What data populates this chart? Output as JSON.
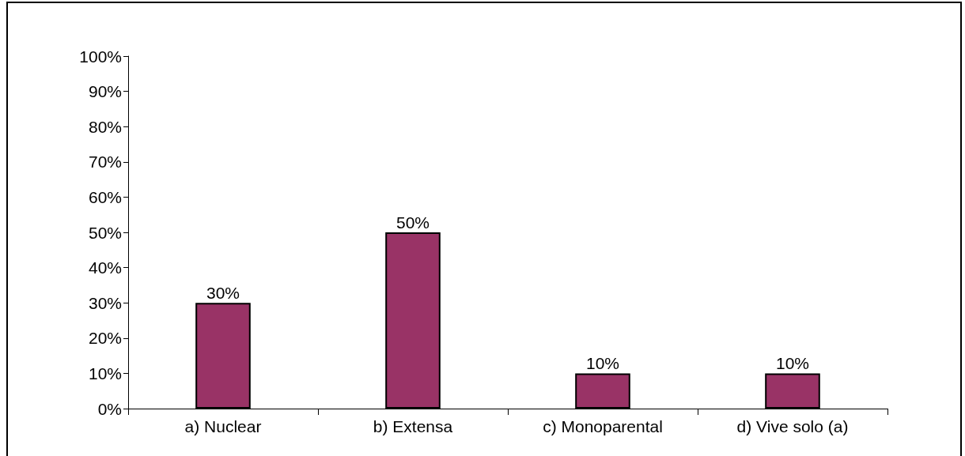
{
  "chart_data": {
    "type": "bar",
    "categories": [
      "a) Nuclear",
      "b) Extensa",
      "c) Monoparental",
      "d) Vive solo (a)"
    ],
    "values": [
      30,
      50,
      10,
      10
    ],
    "color": "#993366",
    "value_labels": [
      "30%",
      "50%",
      "10%",
      "10%"
    ],
    "ylim": [
      0,
      100
    ],
    "yticks": [
      {
        "value": 0,
        "label": "0%"
      },
      {
        "value": 10,
        "label": "10%"
      },
      {
        "value": 20,
        "label": "20%"
      },
      {
        "value": 30,
        "label": "30%"
      },
      {
        "value": 40,
        "label": "40%"
      },
      {
        "value": 50,
        "label": "50%"
      },
      {
        "value": 60,
        "label": "60%"
      },
      {
        "value": 70,
        "label": "70%"
      },
      {
        "value": 80,
        "label": "80%"
      },
      {
        "value": 90,
        "label": "90%"
      },
      {
        "value": 100,
        "label": "100%"
      }
    ]
  }
}
